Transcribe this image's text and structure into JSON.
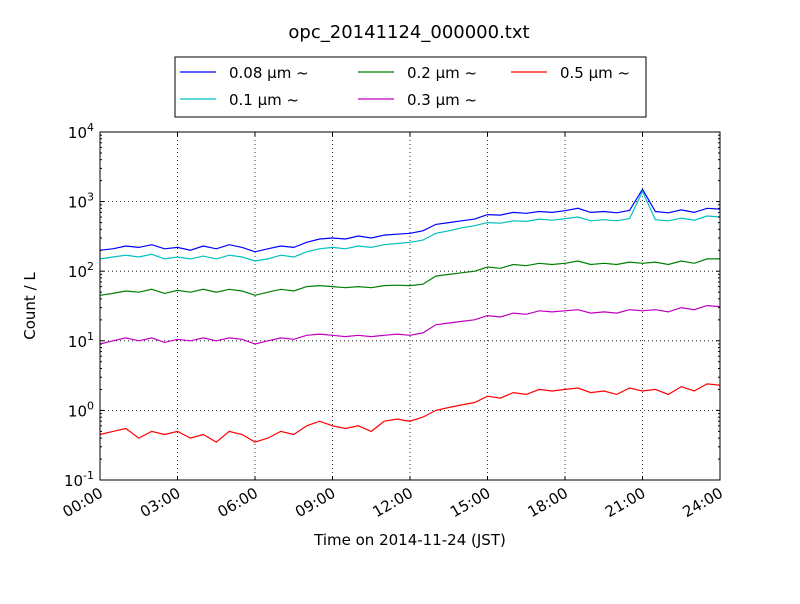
{
  "chart_data": {
    "type": "line",
    "title": "opc_20141124_000000.txt",
    "xlabel": "Time on 2014-11-24 (JST)",
    "ylabel": "Count / L",
    "yscale": "log",
    "ylim": [
      0.1,
      10000
    ],
    "xlim": [
      0,
      24
    ],
    "grid": true,
    "legend_placement": "top-center, above plot",
    "x_ticks": [
      0,
      3,
      6,
      9,
      12,
      15,
      18,
      21,
      24
    ],
    "x_tick_labels": [
      "00:00",
      "03:00",
      "06:00",
      "09:00",
      "12:00",
      "15:00",
      "18:00",
      "21:00",
      "24:00"
    ],
    "y_ticks": [
      0.1,
      1,
      10,
      100,
      1000,
      10000
    ],
    "y_tick_labels": [
      {
        "base": "10",
        "exp": "-1"
      },
      {
        "base": "10",
        "exp": "0"
      },
      {
        "base": "10",
        "exp": "1"
      },
      {
        "base": "10",
        "exp": "2"
      },
      {
        "base": "10",
        "exp": "3"
      },
      {
        "base": "10",
        "exp": "4"
      }
    ],
    "x": [
      0,
      0.5,
      1,
      1.5,
      2,
      2.5,
      3,
      3.5,
      4,
      4.5,
      5,
      5.5,
      6,
      6.5,
      7,
      7.5,
      8,
      8.5,
      9,
      9.5,
      10,
      10.5,
      11,
      11.5,
      12,
      12.5,
      13,
      13.5,
      14,
      14.5,
      15,
      15.5,
      16,
      16.5,
      17,
      17.5,
      18,
      18.5,
      19,
      19.5,
      20,
      20.5,
      21,
      21.5,
      22,
      22.5,
      23,
      23.5,
      24
    ],
    "series": [
      {
        "name": "0.08 μm ~",
        "color": "#0000ff",
        "values": [
          200,
          210,
          230,
          220,
          240,
          210,
          220,
          200,
          230,
          210,
          240,
          220,
          190,
          210,
          230,
          220,
          260,
          290,
          300,
          290,
          320,
          300,
          330,
          340,
          350,
          380,
          470,
          500,
          530,
          560,
          650,
          640,
          700,
          680,
          720,
          700,
          740,
          800,
          700,
          720,
          690,
          750,
          1500,
          720,
          690,
          760,
          700,
          800,
          780
        ]
      },
      {
        "name": "0.1 μm ~",
        "color": "#00bfbf",
        "values": [
          150,
          160,
          170,
          160,
          175,
          150,
          160,
          150,
          165,
          150,
          170,
          160,
          140,
          150,
          170,
          160,
          190,
          210,
          220,
          210,
          230,
          220,
          240,
          250,
          260,
          280,
          350,
          380,
          420,
          450,
          500,
          490,
          530,
          520,
          560,
          540,
          570,
          600,
          530,
          550,
          530,
          570,
          1400,
          550,
          530,
          580,
          540,
          620,
          600
        ]
      },
      {
        "name": "0.2 μm ~",
        "color": "#008000",
        "values": [
          45,
          48,
          52,
          50,
          55,
          48,
          53,
          50,
          55,
          50,
          55,
          52,
          45,
          50,
          55,
          52,
          60,
          62,
          60,
          58,
          60,
          58,
          62,
          63,
          62,
          65,
          85,
          90,
          95,
          100,
          115,
          110,
          125,
          120,
          130,
          125,
          130,
          140,
          125,
          130,
          125,
          135,
          130,
          135,
          125,
          140,
          130,
          150,
          150
        ]
      },
      {
        "name": "0.3 μm ~",
        "color": "#bf00bf",
        "values": [
          9,
          10,
          11,
          10,
          11,
          9.5,
          10.5,
          10,
          11,
          10,
          11,
          10.5,
          9,
          10,
          11,
          10.5,
          12,
          12.5,
          12,
          11.5,
          12,
          11.5,
          12,
          12.5,
          12,
          13,
          17,
          18,
          19,
          20,
          23,
          22,
          25,
          24,
          27,
          26,
          27,
          28,
          25,
          26,
          25,
          28,
          27,
          28,
          26,
          30,
          28,
          32,
          31
        ]
      },
      {
        "name": "0.5 μm ~",
        "color": "#ff0000",
        "values": [
          0.45,
          0.5,
          0.55,
          0.4,
          0.5,
          0.45,
          0.5,
          0.4,
          0.45,
          0.35,
          0.5,
          0.45,
          0.35,
          0.4,
          0.5,
          0.45,
          0.6,
          0.7,
          0.6,
          0.55,
          0.6,
          0.5,
          0.7,
          0.75,
          0.7,
          0.8,
          1.0,
          1.1,
          1.2,
          1.3,
          1.6,
          1.5,
          1.8,
          1.7,
          2.0,
          1.9,
          2.0,
          2.1,
          1.8,
          1.9,
          1.7,
          2.1,
          1.9,
          2.0,
          1.7,
          2.2,
          1.9,
          2.4,
          2.3
        ]
      }
    ]
  }
}
